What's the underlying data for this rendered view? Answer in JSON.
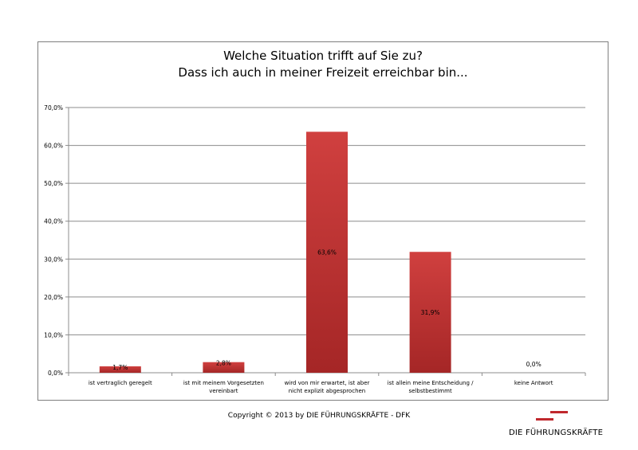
{
  "chart_data": {
    "type": "bar",
    "title_lines": [
      "Welche Situation trifft auf Sie zu?",
      "Dass ich auch in meiner Freizeit erreichbar bin..."
    ],
    "categories": [
      [
        "ist vertraglich geregelt"
      ],
      [
        "ist mit meinem Vorgesetzten",
        "vereinbart"
      ],
      [
        "wird von mir erwartet, ist aber",
        "nicht explizit abgesprochen"
      ],
      [
        "ist allein meine Entscheidung /",
        "selbstbestimmt"
      ],
      [
        "keine Antwort"
      ]
    ],
    "values": [
      1.7,
      2.8,
      63.6,
      31.9,
      0.0
    ],
    "data_labels": [
      "1,7%",
      "2,8%",
      "63,6%",
      "31,9%",
      "0,0%"
    ],
    "ylim": [
      0,
      70
    ],
    "yticks": [
      "0,0%",
      "10,0%",
      "20,0%",
      "30,0%",
      "40,0%",
      "50,0%",
      "60,0%",
      "70,0%"
    ],
    "grid": true,
    "colors": {
      "bar_top": "#d0403f",
      "bar_bottom": "#a52626",
      "grid": "#8c8c8c"
    }
  },
  "footer": {
    "copyright": "Copyright © 2013 by DIE FÜHRUNGSKRÄFTE - DFK",
    "logo_text": "DIE FÜHRUNGSKRÄFTE"
  }
}
